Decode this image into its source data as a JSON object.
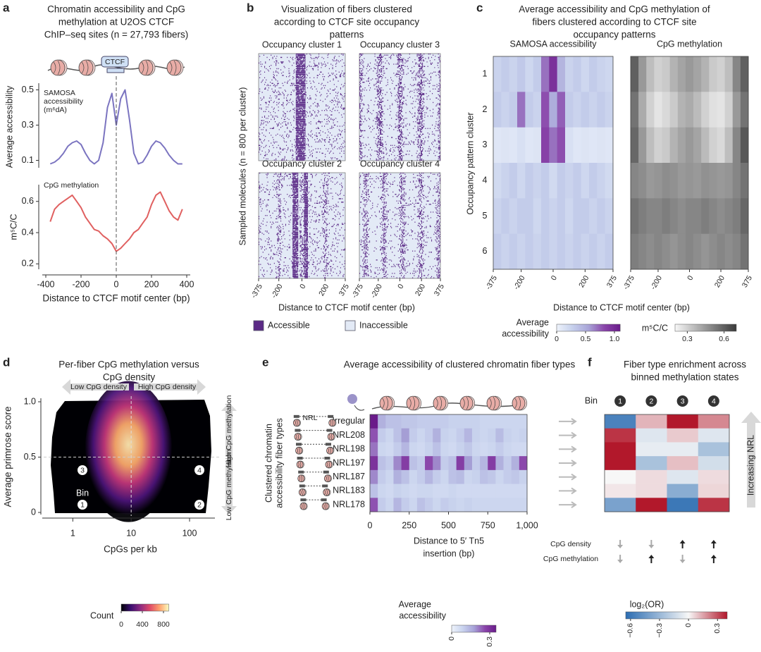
{
  "chart_data": [
    {
      "panel": "a",
      "type": "line",
      "title": [
        "Chromatin accessibility and CpG",
        "methylation at U2OS CTCF",
        "ChIP–seq sites (n = 27,793 fibers)"
      ],
      "annotation": "CTCF",
      "series_label": [
        "SAMOSA",
        "accessibility",
        "(m⁶dA)"
      ],
      "ylabel": "Average accessibility",
      "x": [
        -375,
        -350,
        -325,
        -300,
        -275,
        -250,
        -225,
        -200,
        -175,
        -150,
        -125,
        -100,
        -75,
        -50,
        -25,
        0,
        25,
        50,
        75,
        100,
        125,
        150,
        175,
        200,
        225,
        250,
        275,
        300,
        325,
        350,
        375
      ],
      "values": [
        0.08,
        0.09,
        0.11,
        0.14,
        0.18,
        0.2,
        0.21,
        0.19,
        0.14,
        0.1,
        0.08,
        0.1,
        0.2,
        0.4,
        0.48,
        0.3,
        0.45,
        0.5,
        0.33,
        0.14,
        0.08,
        0.09,
        0.13,
        0.18,
        0.21,
        0.2,
        0.17,
        0.13,
        0.1,
        0.08,
        0.08
      ],
      "color": "#7b74c0",
      "xlim": [
        -400,
        400
      ],
      "ylim": [
        0.05,
        0.55
      ],
      "yticks": [
        0.1,
        0.3,
        0.5
      ]
    },
    {
      "type": "line",
      "series_label": [
        "CpG methylation"
      ],
      "ylabel": "m⁵C/C",
      "x": [
        -375,
        -350,
        -325,
        -300,
        -275,
        -250,
        -225,
        -200,
        -175,
        -150,
        -125,
        -100,
        -75,
        -50,
        -25,
        0,
        25,
        50,
        75,
        100,
        125,
        150,
        175,
        200,
        225,
        250,
        275,
        300,
        325,
        350,
        375
      ],
      "values": [
        0.47,
        0.55,
        0.58,
        0.6,
        0.62,
        0.64,
        0.6,
        0.56,
        0.5,
        0.46,
        0.42,
        0.41,
        0.38,
        0.36,
        0.33,
        0.28,
        0.3,
        0.33,
        0.36,
        0.4,
        0.42,
        0.46,
        0.5,
        0.58,
        0.64,
        0.66,
        0.6,
        0.54,
        0.5,
        0.48,
        0.55
      ],
      "color": "#e06060",
      "xlim": [
        -400,
        400
      ],
      "ylim": [
        0.17,
        0.68
      ],
      "yticks": [
        0.2,
        0.4,
        0.6
      ],
      "xticks": [
        -400,
        -200,
        0,
        200,
        400
      ],
      "xlabel": "Distance to CTCF motif center (bp)"
    },
    {
      "panel": "b",
      "type": "raster",
      "title": [
        "Visualization of fibers clustered",
        "according to CTCF site occupancy",
        "patterns"
      ],
      "subtitles": [
        "Occupancy cluster 1",
        "Occupancy cluster 3",
        "Occupancy cluster 2",
        "Occupancy cluster 4"
      ],
      "ylabel": "Sampled molecules (n = 800 per cluster)",
      "xlim": [
        -375,
        375
      ],
      "xticks": [
        -375,
        -200,
        0,
        200,
        375
      ],
      "xlabel": "Distance to CTCF motif center (bp)",
      "legend": [
        {
          "name": "Accessible",
          "color": "#5b2a86"
        },
        {
          "name": "Inaccessible",
          "color": "#e3eaf6"
        }
      ]
    },
    {
      "panel": "c",
      "type": "heatmap",
      "title": [
        "Average accessibility and CpG methylation of",
        "fibers clustered according to CTCF site",
        "occupancy patterns"
      ],
      "ylabel": "Occupancy pattern cluster",
      "categories": [
        "1",
        "2",
        "3",
        "4",
        "5",
        "6"
      ],
      "x": [
        -350,
        -300,
        -250,
        -200,
        -150,
        -100,
        -50,
        0,
        50,
        100,
        150,
        200,
        250,
        300,
        350
      ],
      "xlim": [
        -375,
        375
      ],
      "xticks": [
        -375,
        -200,
        0,
        200,
        375
      ],
      "xlabel": "Distance to CTCF motif center (bp)",
      "heatmaps": [
        {
          "name": "SAMOSA accessibility",
          "values": [
            [
              0.25,
              0.3,
              0.25,
              0.32,
              0.22,
              0.3,
              0.7,
              0.95,
              0.45,
              0.25,
              0.3,
              0.22,
              0.3,
              0.25,
              0.22
            ],
            [
              0.3,
              0.25,
              0.3,
              0.7,
              0.3,
              0.25,
              0.8,
              0.5,
              0.75,
              0.3,
              0.25,
              0.3,
              0.25,
              0.3,
              0.25
            ],
            [
              0.1,
              0.12,
              0.1,
              0.15,
              0.1,
              0.12,
              0.85,
              0.7,
              0.8,
              0.15,
              0.1,
              0.12,
              0.1,
              0.12,
              0.1
            ],
            [
              0.2,
              0.25,
              0.3,
              0.22,
              0.3,
              0.25,
              0.3,
              0.2,
              0.3,
              0.25,
              0.3,
              0.22,
              0.3,
              0.25,
              0.2
            ],
            [
              0.25,
              0.3,
              0.25,
              0.3,
              0.3,
              0.22,
              0.3,
              0.25,
              0.3,
              0.22,
              0.3,
              0.3,
              0.25,
              0.3,
              0.25
            ],
            [
              0.3,
              0.25,
              0.3,
              0.25,
              0.3,
              0.25,
              0.3,
              0.25,
              0.3,
              0.25,
              0.3,
              0.25,
              0.3,
              0.25,
              0.3
            ]
          ],
          "colorbar": {
            "label": [
              "Average",
              "accessibility"
            ],
            "clim": [
              0,
              1.1
            ],
            "ticks": [
              0,
              0.5,
              {
                "value": 1,
                "label": "1.0"
              }
            ],
            "colormap": [
              "#eef3fb",
              "#c6d0ec",
              "#a9a5d8",
              "#8a45aa",
              "#6a1b8a"
            ]
          }
        },
        {
          "name": "CpG methylation",
          "values": [
            [
              0.6,
              0.45,
              0.35,
              0.3,
              0.32,
              0.38,
              0.42,
              0.45,
              0.42,
              0.38,
              0.32,
              0.3,
              0.35,
              0.5,
              0.6
            ],
            [
              0.55,
              0.4,
              0.3,
              0.25,
              0.28,
              0.32,
              0.38,
              0.4,
              0.36,
              0.3,
              0.26,
              0.25,
              0.3,
              0.45,
              0.55
            ],
            [
              0.58,
              0.45,
              0.35,
              0.3,
              0.32,
              0.38,
              0.42,
              0.45,
              0.42,
              0.36,
              0.3,
              0.28,
              0.35,
              0.5,
              0.62
            ],
            [
              0.5,
              0.48,
              0.45,
              0.46,
              0.48,
              0.47,
              0.45,
              0.46,
              0.45,
              0.47,
              0.46,
              0.45,
              0.46,
              0.5,
              0.55
            ],
            [
              0.55,
              0.52,
              0.5,
              0.5,
              0.52,
              0.5,
              0.48,
              0.5,
              0.5,
              0.52,
              0.5,
              0.48,
              0.5,
              0.52,
              0.58
            ],
            [
              0.52,
              0.5,
              0.48,
              0.5,
              0.48,
              0.46,
              0.48,
              0.5,
              0.48,
              0.46,
              0.48,
              0.5,
              0.48,
              0.5,
              0.55
            ]
          ],
          "colorbar": {
            "label": [
              "m⁵C/C"
            ],
            "clim": [
              0.2,
              0.7
            ],
            "ticks": [
              0.3,
              0.6
            ],
            "colormap": [
              "#f7f7f7",
              "#3a3a3a"
            ]
          }
        }
      ]
    },
    {
      "panel": "d",
      "type": "density",
      "title": [
        "Per-fiber CpG methylation versus",
        "CpG density"
      ],
      "arrows": {
        "x": [
          "Low CpG density",
          "High CpG density"
        ],
        "y": [
          "High CpG methylation",
          "Low CpG methylation"
        ]
      },
      "xlabel": "CpGs per kb",
      "ylabel": "Average primrose score",
      "xscale": "log",
      "xlim": [
        0.3,
        250
      ],
      "xticks": [
        1,
        10,
        100
      ],
      "ylim": [
        0,
        1
      ],
      "yticks": [
        0,
        0.5,
        {
          "value": 1,
          "label": "1.0"
        }
      ],
      "guides": {
        "x": 10,
        "y": 0.5
      },
      "bin_label": "Bin",
      "bin_numbers": [
        "3",
        "4",
        "1",
        "2"
      ],
      "colorbar": {
        "label": "Count",
        "clim": [
          0,
          900
        ],
        "ticks": [
          0,
          400,
          800
        ],
        "colormap": [
          "#000004",
          "#3b0f70",
          "#8c2981",
          "#de4968",
          "#fe9f6d",
          "#fcfdbf"
        ]
      }
    },
    {
      "panel": "e",
      "type": "heatmap",
      "title": "Average accessibility of clustered chromatin fiber types",
      "annotation": "NRL",
      "ylabel": [
        "Clustered chromatin",
        "accessibility fiber types"
      ],
      "categories": [
        "Irregular",
        "NRL208",
        "NRL198",
        "NRL197",
        "NRL187",
        "NRL183",
        "NRL178"
      ],
      "x": [
        25,
        75,
        125,
        175,
        225,
        275,
        325,
        375,
        425,
        475,
        525,
        575,
        625,
        675,
        725,
        775,
        825,
        875,
        925,
        975
      ],
      "xlim": [
        0,
        1000
      ],
      "xticks": [
        0,
        250,
        500,
        750,
        {
          "value": 1000,
          "label": "1,000"
        }
      ],
      "xlabel": [
        "Distance to 5′ Tn5",
        "insertion (bp)"
      ],
      "values": [
        [
          0.35,
          0.15,
          0.12,
          0.12,
          0.11,
          0.11,
          0.1,
          0.1,
          0.1,
          0.1,
          0.09,
          0.09,
          0.09,
          0.09,
          0.08,
          0.08,
          0.08,
          0.08,
          0.08,
          0.08
        ],
        [
          0.25,
          0.1,
          0.08,
          0.12,
          0.18,
          0.1,
          0.08,
          0.1,
          0.15,
          0.09,
          0.08,
          0.1,
          0.14,
          0.09,
          0.08,
          0.09,
          0.13,
          0.09,
          0.08,
          0.09
        ],
        [
          0.22,
          0.08,
          0.07,
          0.1,
          0.14,
          0.08,
          0.07,
          0.09,
          0.12,
          0.08,
          0.07,
          0.09,
          0.11,
          0.08,
          0.07,
          0.08,
          0.1,
          0.08,
          0.07,
          0.07
        ],
        [
          0.3,
          0.12,
          0.1,
          0.2,
          0.28,
          0.12,
          0.1,
          0.26,
          0.2,
          0.1,
          0.12,
          0.28,
          0.18,
          0.1,
          0.14,
          0.28,
          0.15,
          0.1,
          0.15,
          0.26
        ],
        [
          0.2,
          0.1,
          0.08,
          0.15,
          0.12,
          0.08,
          0.1,
          0.14,
          0.1,
          0.08,
          0.12,
          0.13,
          0.08,
          0.09,
          0.12,
          0.11,
          0.08,
          0.1,
          0.11,
          0.09
        ],
        [
          0.12,
          0.08,
          0.07,
          0.09,
          0.08,
          0.07,
          0.08,
          0.08,
          0.07,
          0.07,
          0.08,
          0.07,
          0.07,
          0.07,
          0.07,
          0.07,
          0.07,
          0.07,
          0.07,
          0.07
        ],
        [
          0.25,
          0.1,
          0.08,
          0.14,
          0.1,
          0.08,
          0.12,
          0.1,
          0.08,
          0.1,
          0.09,
          0.08,
          0.09,
          0.08,
          0.08,
          0.08,
          0.08,
          0.08,
          0.08,
          0.08
        ]
      ],
      "colorbar": {
        "label": [
          "Average",
          "accessibility"
        ],
        "clim": [
          0,
          0.35
        ],
        "ticks": [
          0,
          0.3
        ],
        "colormap": [
          "#eef3fb",
          "#c9d3ee",
          "#a7a3d8",
          "#8a45aa",
          "#6a1b8a"
        ]
      }
    },
    {
      "panel": "f",
      "type": "heatmap",
      "title": [
        "Fiber type enrichment across",
        "binned methylation states"
      ],
      "bin_label": "Bin",
      "categories": [
        "1",
        "2",
        "3",
        "4"
      ],
      "side_label": "Increasing NRL",
      "values": [
        [
          -0.55,
          0.12,
          0.55,
          0.2
        ],
        [
          0.35,
          -0.08,
          0.08,
          -0.08
        ],
        [
          0.5,
          -0.05,
          -0.05,
          -0.25
        ],
        [
          0.45,
          -0.25,
          0.1,
          -0.12
        ],
        [
          0,
          0.05,
          -0.08,
          0.05
        ],
        [
          0.03,
          0.05,
          -0.35,
          0.06
        ],
        [
          -0.4,
          0.45,
          -0.6,
          0.35
        ]
      ],
      "indicators": [
        {
          "label": "CpG density",
          "arrows": [
            "down",
            "down",
            "up",
            "up"
          ]
        },
        {
          "label": "CpG methylation",
          "arrows": [
            "down",
            "up",
            "down",
            "up"
          ]
        }
      ],
      "colorbar": {
        "label": [
          "log₂(OR)"
        ],
        "clim": [
          -0.65,
          0.4
        ],
        "center": 0,
        "ticks": [
          {
            "value": -0.6,
            "label": "−0.6"
          },
          {
            "value": -0.3,
            "label": "−0.3"
          },
          0,
          0.3
        ],
        "colormap": [
          "#2c6db2",
          "#f7f7f7",
          "#b2182b"
        ]
      }
    }
  ]
}
